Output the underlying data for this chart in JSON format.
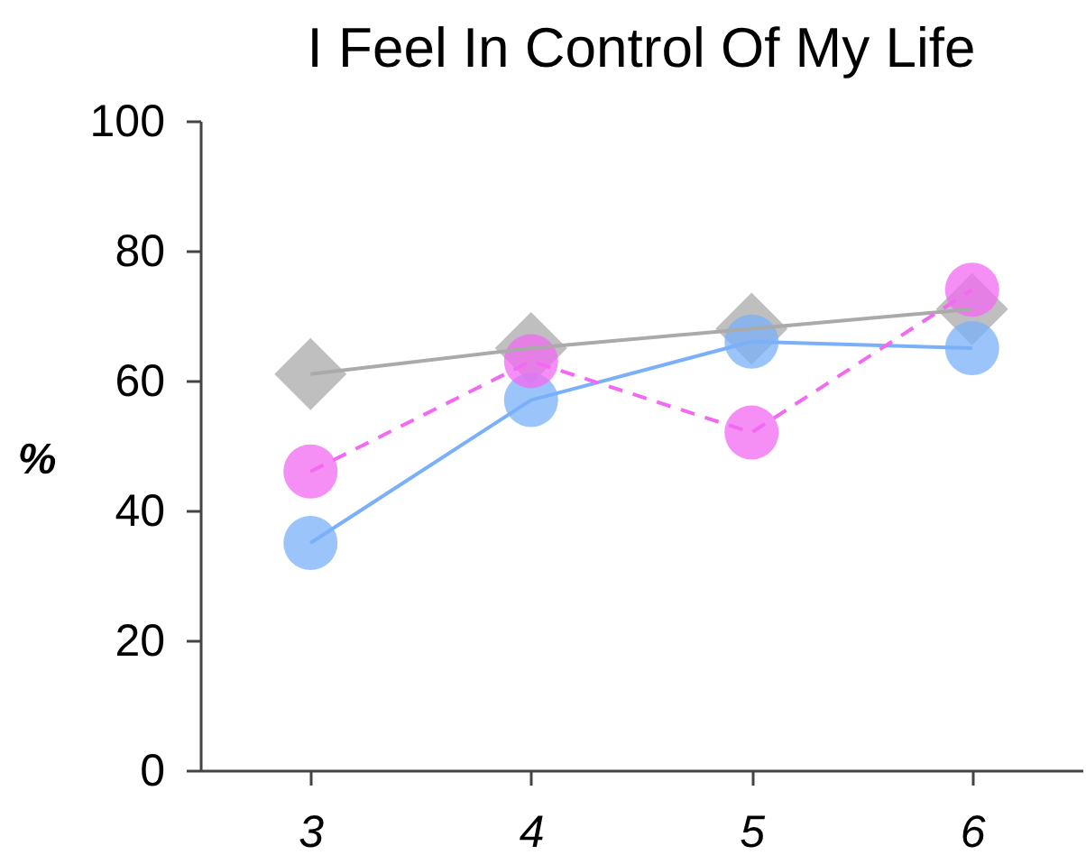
{
  "chart_data": {
    "type": "line",
    "title": "I Feel In Control Of My Life",
    "ylabel": "%",
    "categories": [
      "3",
      "4",
      "5",
      "6"
    ],
    "ylim": [
      0,
      100
    ],
    "yticks": [
      0,
      20,
      40,
      60,
      80,
      100
    ],
    "series": [
      {
        "color": "#aaaaaa",
        "marker": "diamond",
        "line_style": "solid",
        "values": [
          61,
          65,
          68,
          71
        ]
      },
      {
        "color": "#7ab0f9",
        "marker": "circle",
        "line_style": "solid",
        "values": [
          35,
          57,
          66,
          65
        ]
      },
      {
        "color": "#f26af2",
        "marker": "circle",
        "line_style": "dashed",
        "values": [
          46,
          63,
          52,
          74
        ]
      }
    ]
  }
}
